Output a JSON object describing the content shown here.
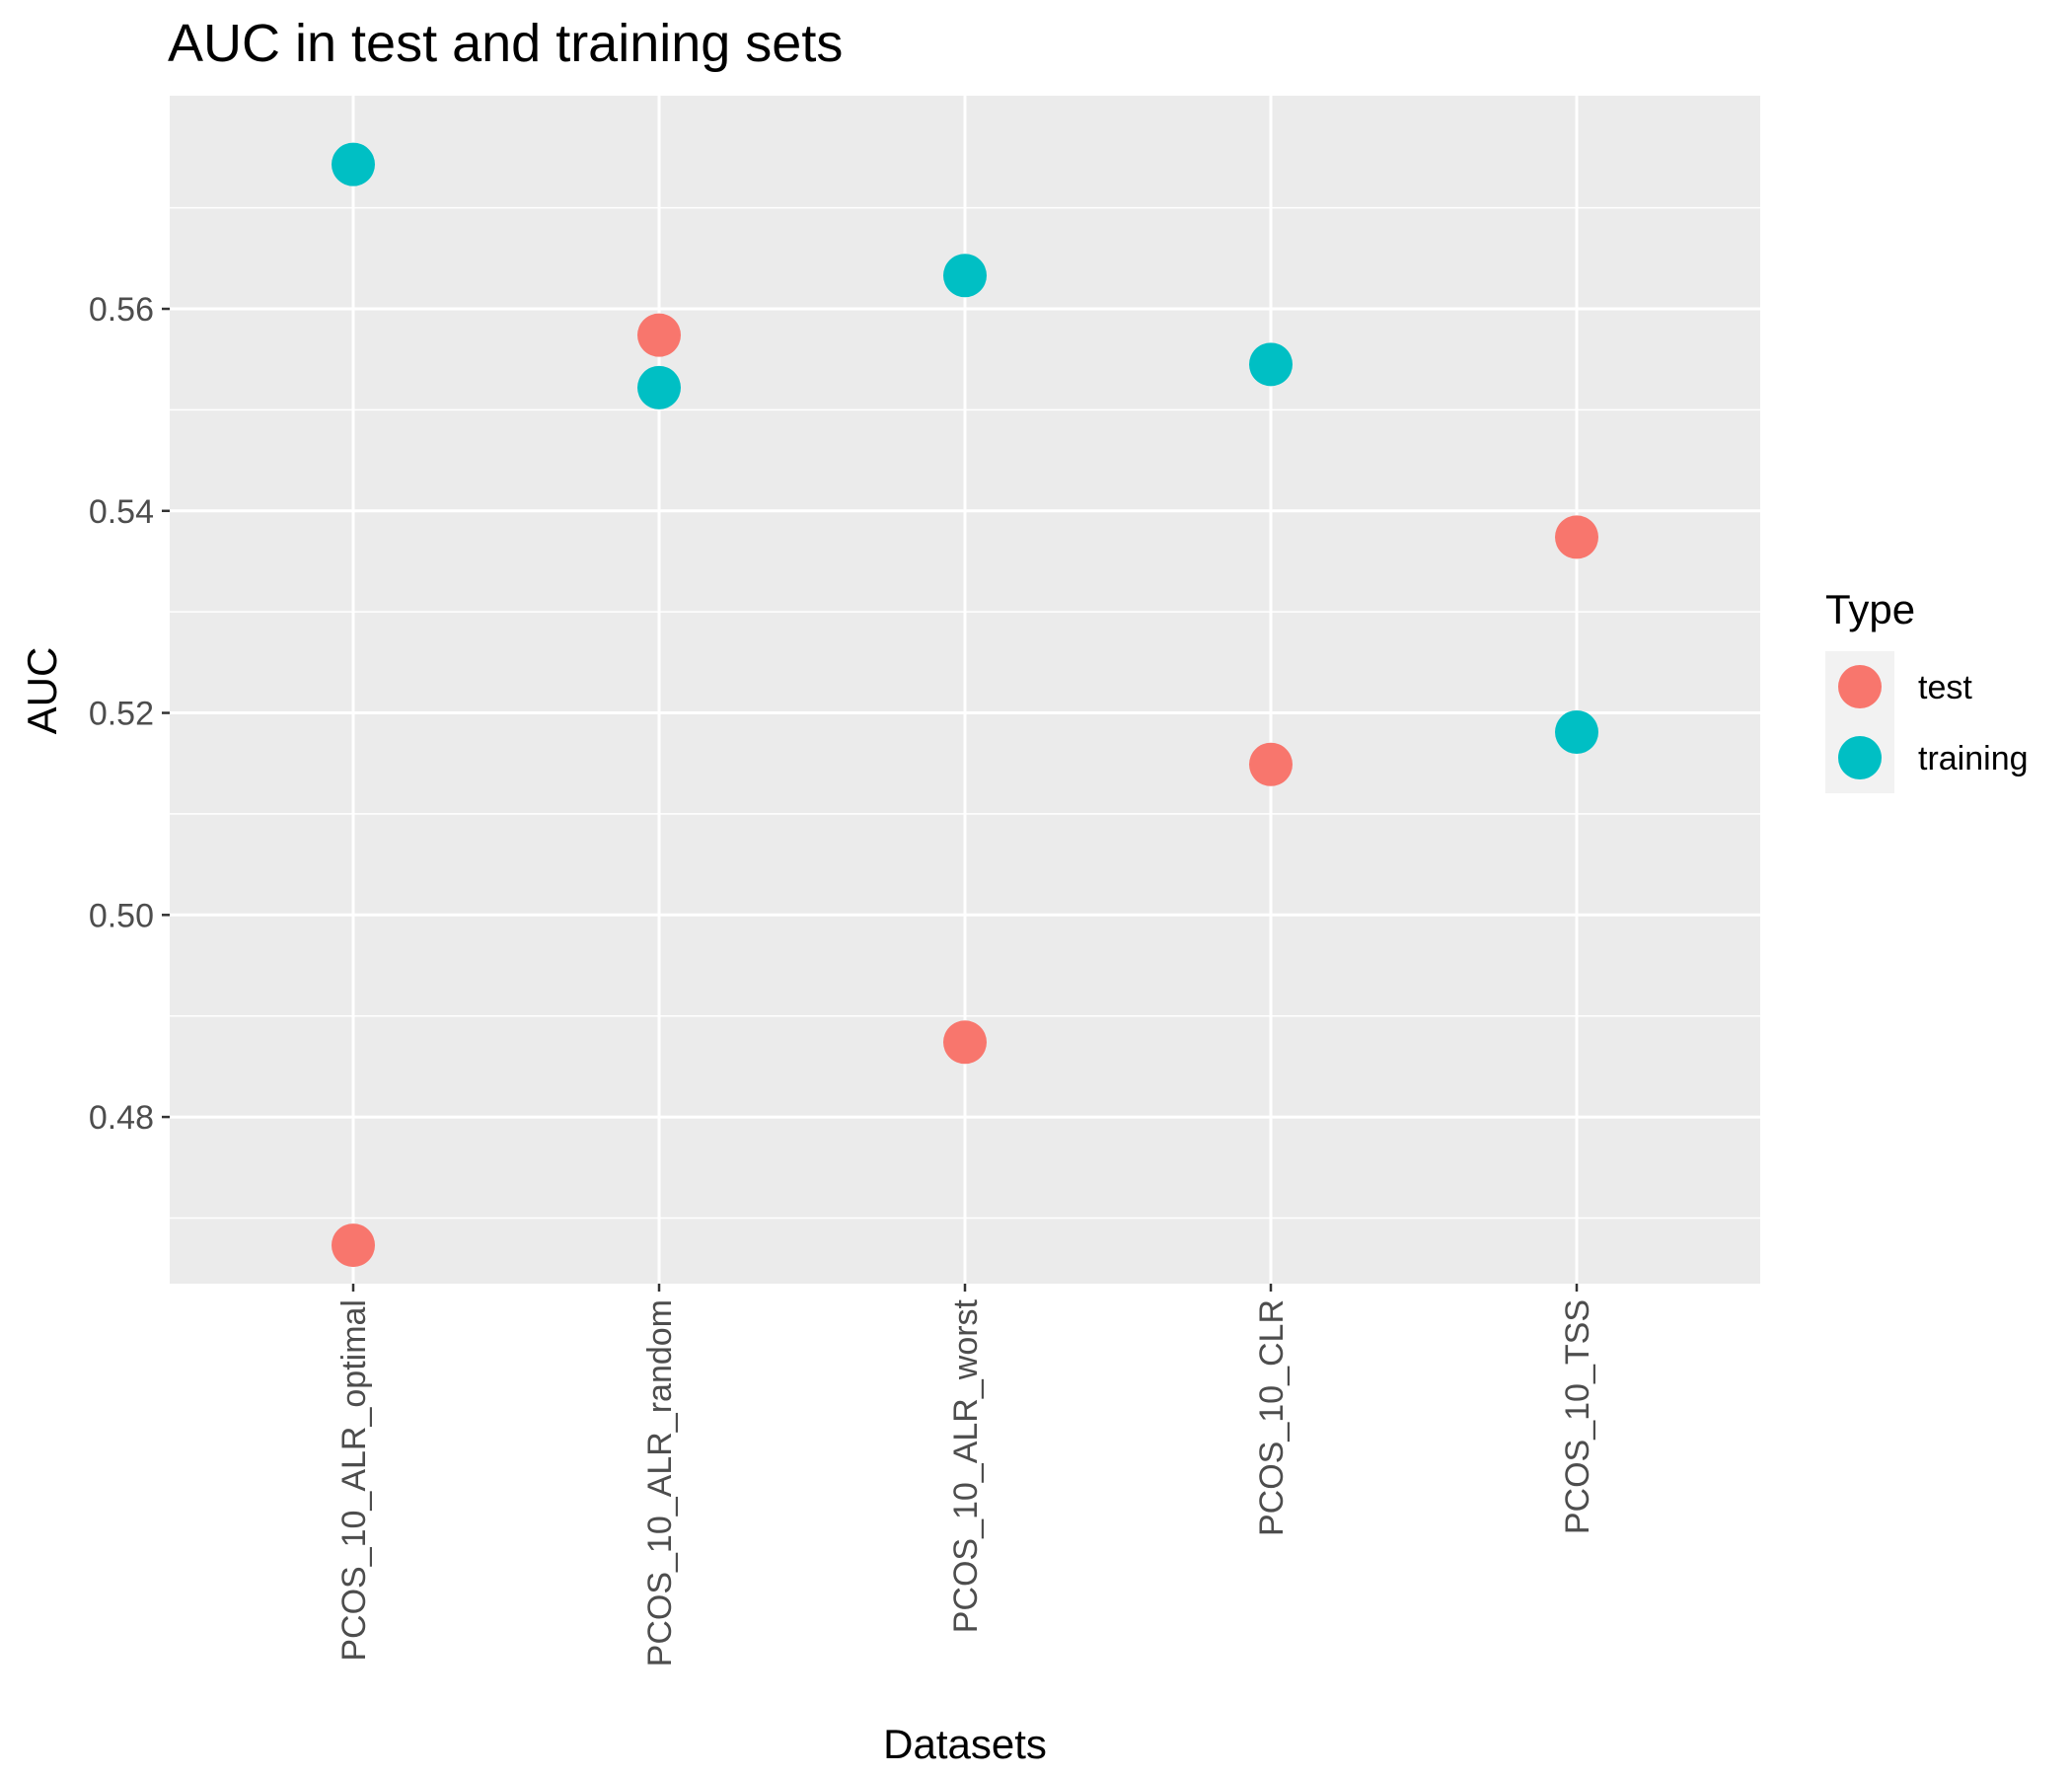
{
  "chart_data": {
    "type": "scatter",
    "title": "AUC in test and training sets",
    "xlabel": "Datasets",
    "ylabel": "AUC",
    "categories": [
      "PCOS_10_ALR_optimal",
      "PCOS_10_ALR_random",
      "PCOS_10_ALR_worst",
      "PCOS_10_CLR",
      "PCOS_10_TSS"
    ],
    "ylim": [
      0.4635,
      0.5811
    ],
    "yticks": [
      0.48,
      0.5,
      0.52,
      0.54,
      0.56
    ],
    "ytick_labels": [
      "0.48",
      "0.50",
      "0.52",
      "0.54",
      "0.56"
    ],
    "grid": true,
    "legend": {
      "title": "Type",
      "placement": "right"
    },
    "series": [
      {
        "name": "test",
        "color": "#F8766D",
        "values": [
          0.4673,
          0.5574,
          0.4874,
          0.5149,
          0.5374
        ]
      },
      {
        "name": "training",
        "color": "#00BFC4",
        "values": [
          0.5743,
          0.5522,
          0.5633,
          0.5545,
          0.5181
        ]
      }
    ]
  }
}
